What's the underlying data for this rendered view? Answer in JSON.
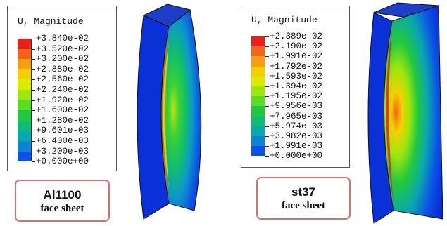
{
  "panels": [
    {
      "legend_title": "U, Magnitude",
      "labels": [
        "+3.840e-02",
        "+3.520e-02",
        "+3.200e-02",
        "+2.880e-02",
        "+2.560e-02",
        "+2.240e-02",
        "+1.920e-02",
        "+1.600e-02",
        "+1.280e-02",
        "+9.601e-03",
        "+6.400e-03",
        "+3.200e-03",
        "+0.000e+00"
      ],
      "material": "Al1100",
      "subtitle": "face sheet"
    },
    {
      "legend_title": "U, Magnitude",
      "labels": [
        "+2.389e-02",
        "+2.190e-02",
        "+1.991e-02",
        "+1.792e-02",
        "+1.593e-02",
        "+1.394e-02",
        "+1.195e-02",
        "+9.956e-03",
        "+7.965e-03",
        "+5.974e-03",
        "+3.982e-03",
        "+1.991e-03",
        "+0.000e+00"
      ],
      "material": "st37",
      "subtitle": "face sheet"
    }
  ],
  "colors": {
    "band_colors": [
      "#e8201c",
      "#f2641a",
      "#f59e16",
      "#f5d000",
      "#d8ec00",
      "#9ce70d",
      "#5adb24",
      "#21c83f",
      "#10bb72",
      "#0aa7ae",
      "#0c84d2",
      "#0c52e6",
      "#0022d8"
    ],
    "tag_border": "#d97070"
  }
}
